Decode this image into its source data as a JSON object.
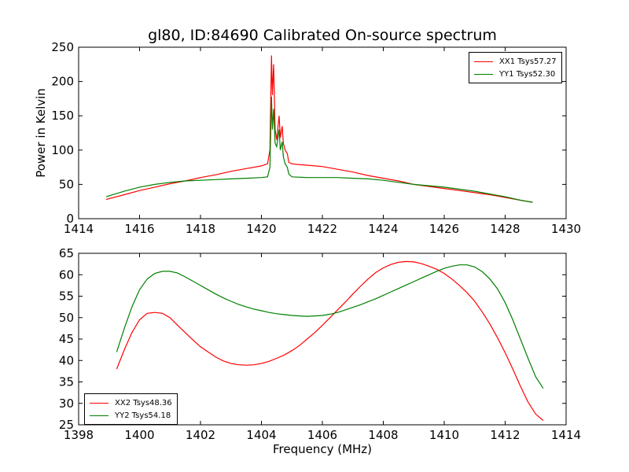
{
  "chart_data": [
    {
      "type": "line",
      "title": "gl80, ID:84690 Calibrated On-source spectrum",
      "xlabel": "",
      "ylabel": "Power in Kelvin",
      "xlim": [
        1414,
        1430
      ],
      "ylim": [
        0,
        250
      ],
      "xticks": [
        "1414",
        "1416",
        "1418",
        "1420",
        "1422",
        "1424",
        "1426",
        "1428",
        "1430"
      ],
      "yticks": [
        "0",
        "50",
        "100",
        "150",
        "200",
        "250"
      ],
      "legend_position": "upper-right",
      "series": [
        {
          "name": "XX1 Tsys57.27",
          "color": "#ff0000",
          "x": [
            1414.9,
            1415.5,
            1416.0,
            1416.5,
            1417.0,
            1417.5,
            1418.0,
            1418.5,
            1419.0,
            1419.5,
            1420.0,
            1420.2,
            1420.28,
            1420.33,
            1420.36,
            1420.4,
            1420.45,
            1420.5,
            1420.58,
            1420.62,
            1420.68,
            1420.72,
            1420.78,
            1420.85,
            1420.9,
            1421.0,
            1421.2,
            1421.5,
            1422.0,
            1422.5,
            1423.0,
            1423.5,
            1424.0,
            1424.5,
            1425.0,
            1425.5,
            1426.0,
            1426.5,
            1427.0,
            1427.5,
            1428.0,
            1428.5,
            1428.9
          ],
          "y": [
            28,
            35,
            41,
            46,
            51,
            55,
            60,
            64,
            69,
            73,
            77,
            80,
            100,
            238,
            180,
            225,
            130,
            115,
            150,
            118,
            135,
            110,
            100,
            95,
            82,
            80,
            79,
            78,
            76,
            72,
            68,
            63,
            59,
            55,
            50,
            47,
            44,
            41,
            38,
            35,
            31,
            27,
            24
          ]
        },
        {
          "name": "YY1 Tsys52.30",
          "color": "#008000",
          "x": [
            1414.9,
            1415.5,
            1416.0,
            1416.5,
            1417.0,
            1417.5,
            1418.0,
            1418.5,
            1419.0,
            1419.5,
            1420.0,
            1420.2,
            1420.28,
            1420.33,
            1420.36,
            1420.4,
            1420.45,
            1420.5,
            1420.58,
            1420.62,
            1420.68,
            1420.72,
            1420.78,
            1420.85,
            1420.9,
            1421.0,
            1421.5,
            1422.0,
            1422.5,
            1423.0,
            1423.5,
            1424.0,
            1424.5,
            1425.0,
            1425.5,
            1426.0,
            1426.5,
            1427.0,
            1427.5,
            1428.0,
            1428.5,
            1428.9
          ],
          "y": [
            32,
            40,
            46,
            50,
            53,
            55,
            56,
            57,
            58,
            59,
            60,
            61,
            75,
            178,
            130,
            160,
            110,
            105,
            130,
            100,
            112,
            90,
            80,
            75,
            65,
            61,
            60,
            60,
            60,
            59,
            58,
            56,
            53,
            50,
            48,
            46,
            43,
            40,
            36,
            32,
            27,
            24
          ]
        }
      ]
    },
    {
      "type": "line",
      "title": "",
      "xlabel": "Frequency (MHz)",
      "ylabel": "",
      "xlim": [
        1398,
        1414
      ],
      "ylim": [
        25,
        65
      ],
      "xticks": [
        "1398",
        "1400",
        "1402",
        "1404",
        "1406",
        "1408",
        "1410",
        "1412",
        "1414"
      ],
      "yticks": [
        "25",
        "30",
        "35",
        "40",
        "45",
        "50",
        "55",
        "60",
        "65"
      ],
      "legend_position": "lower-left",
      "series": [
        {
          "name": "XX2 Tsys48.36",
          "color": "#ff0000",
          "x": [
            1399.25,
            1399.5,
            1399.75,
            1400.0,
            1400.25,
            1400.5,
            1400.75,
            1401.0,
            1401.25,
            1401.5,
            1401.75,
            1402.0,
            1402.25,
            1402.5,
            1402.75,
            1403.0,
            1403.25,
            1403.5,
            1403.75,
            1404.0,
            1404.25,
            1404.5,
            1404.75,
            1405.0,
            1405.25,
            1405.5,
            1405.75,
            1406.0,
            1406.25,
            1406.5,
            1406.75,
            1407.0,
            1407.25,
            1407.5,
            1407.75,
            1408.0,
            1408.25,
            1408.5,
            1408.75,
            1409.0,
            1409.25,
            1409.5,
            1409.75,
            1410.0,
            1410.25,
            1410.5,
            1410.75,
            1411.0,
            1411.25,
            1411.5,
            1411.75,
            1412.0,
            1412.25,
            1412.5,
            1412.75,
            1413.0,
            1413.25
          ],
          "y": [
            38,
            42.5,
            46.5,
            49.5,
            51,
            51.2,
            51,
            50,
            48.2,
            46.5,
            44.8,
            43.2,
            42,
            40.8,
            39.9,
            39.3,
            39,
            38.9,
            39,
            39.3,
            39.8,
            40.5,
            41.3,
            42.3,
            43.5,
            45,
            46.5,
            48.2,
            50,
            51.8,
            53.6,
            55.5,
            57.3,
            59,
            60.5,
            61.6,
            62.4,
            62.9,
            63.1,
            63,
            62.6,
            62,
            61.3,
            60.3,
            59,
            57.5,
            55.8,
            53.8,
            51.3,
            48.5,
            45.3,
            41.8,
            38,
            34,
            30.3,
            27.5,
            26
          ]
        },
        {
          "name": "YY2 Tsys54.18",
          "color": "#008000",
          "x": [
            1399.25,
            1399.5,
            1399.75,
            1400.0,
            1400.25,
            1400.5,
            1400.75,
            1401.0,
            1401.25,
            1401.5,
            1401.75,
            1402.0,
            1402.25,
            1402.5,
            1402.75,
            1403.0,
            1403.25,
            1403.5,
            1403.75,
            1404.0,
            1404.25,
            1404.5,
            1404.75,
            1405.0,
            1405.25,
            1405.5,
            1405.75,
            1406.0,
            1406.25,
            1406.5,
            1406.75,
            1407.0,
            1407.25,
            1407.5,
            1407.75,
            1408.0,
            1408.25,
            1408.5,
            1408.75,
            1409.0,
            1409.25,
            1409.5,
            1409.75,
            1410.0,
            1410.25,
            1410.5,
            1410.75,
            1411.0,
            1411.25,
            1411.5,
            1411.75,
            1412.0,
            1412.25,
            1412.5,
            1412.75,
            1413.0,
            1413.25
          ],
          "y": [
            42,
            47.5,
            52.5,
            56.5,
            59,
            60.3,
            60.8,
            60.8,
            60.4,
            59.5,
            58.5,
            57.5,
            56.5,
            55.5,
            54.6,
            53.8,
            53.1,
            52.5,
            52,
            51.6,
            51.2,
            50.9,
            50.7,
            50.5,
            50.4,
            50.3,
            50.4,
            50.5,
            50.8,
            51.2,
            51.8,
            52.4,
            53,
            53.7,
            54.4,
            55.2,
            56,
            56.8,
            57.6,
            58.4,
            59.2,
            60,
            60.8,
            61.5,
            62,
            62.3,
            62.3,
            61.8,
            60.7,
            59,
            56.7,
            53.5,
            49.5,
            45,
            40.5,
            36.2,
            33.5
          ]
        }
      ]
    }
  ]
}
